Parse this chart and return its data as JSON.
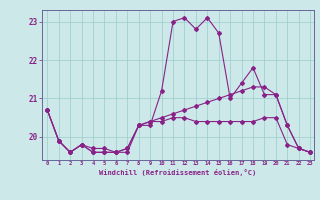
{
  "xlabel": "Windchill (Refroidissement éolien,°C)",
  "bg_color": "#cce8e8",
  "grid_color": "#99cccc",
  "line_color": "#882288",
  "spine_color": "#666699",
  "xmin": 0,
  "xmax": 23,
  "ymin": 19.4,
  "ymax": 23.3,
  "yticks": [
    20,
    21,
    22,
    23
  ],
  "series": [
    [
      20.7,
      19.9,
      19.6,
      19.8,
      19.7,
      19.7,
      19.6,
      19.6,
      20.3,
      20.3,
      21.2,
      23.0,
      23.1,
      22.8,
      23.1,
      22.7,
      21.0,
      21.4,
      21.8,
      21.1,
      21.1,
      20.3,
      19.7,
      19.6
    ],
    [
      20.7,
      19.9,
      19.6,
      19.8,
      19.6,
      19.6,
      19.6,
      19.7,
      20.3,
      20.4,
      20.4,
      20.5,
      20.5,
      20.4,
      20.4,
      20.4,
      20.4,
      20.4,
      20.4,
      20.5,
      20.5,
      19.8,
      19.7,
      19.6
    ],
    [
      20.7,
      19.9,
      19.6,
      19.8,
      19.6,
      19.6,
      19.6,
      19.7,
      20.3,
      20.4,
      20.5,
      20.6,
      20.7,
      20.8,
      20.9,
      21.0,
      21.1,
      21.2,
      21.3,
      21.3,
      21.1,
      20.3,
      19.7,
      19.6
    ]
  ]
}
